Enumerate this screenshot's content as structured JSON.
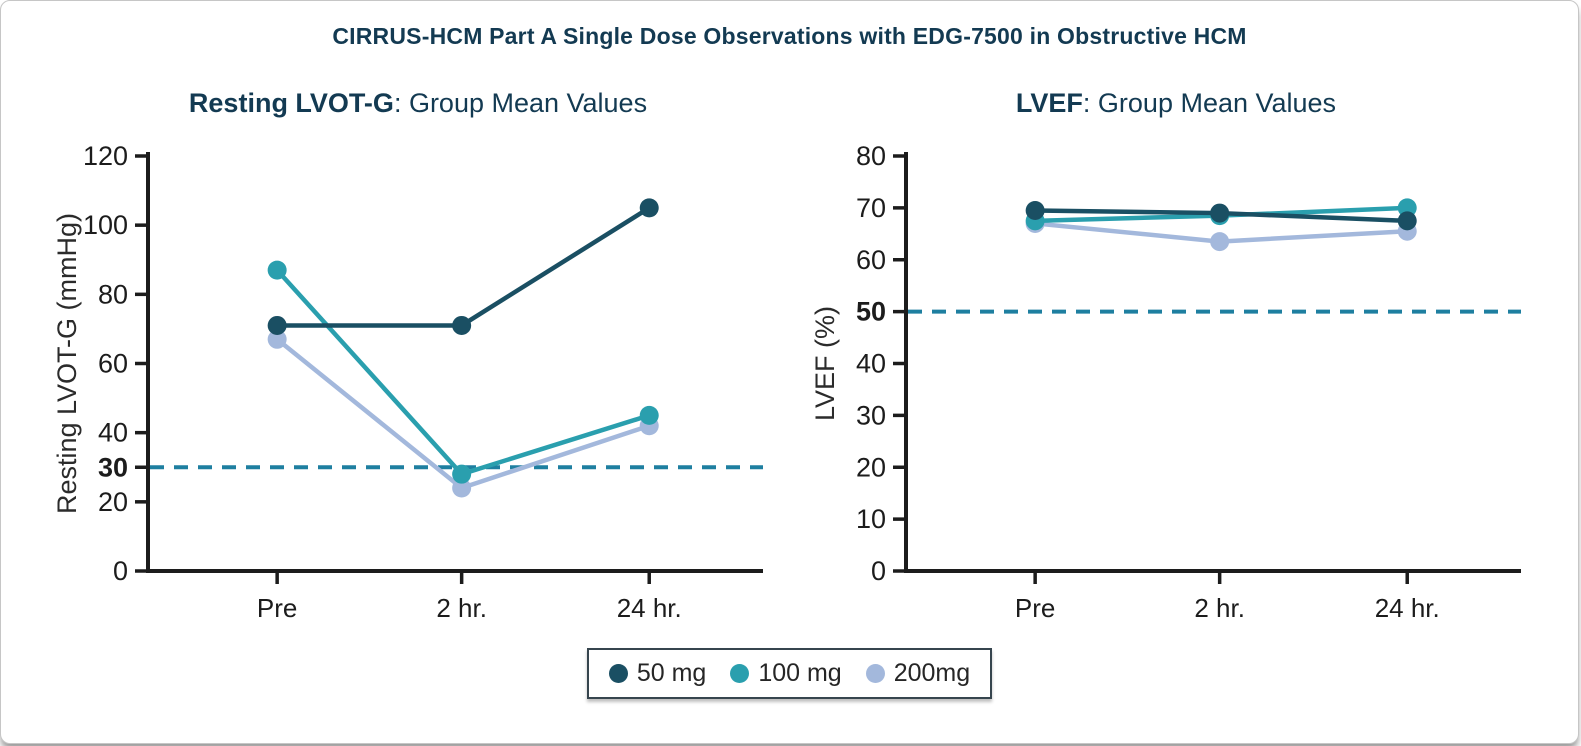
{
  "page_title": "CIRRUS-HCM Part A Single Dose Observations with EDG-7500 in Obstructive HCM",
  "colors": {
    "dose_50mg": "#1a4f63",
    "dose_100mg": "#2a9fae",
    "dose_200mg": "#a3b8dc",
    "reference_line": "#1e7fa0",
    "title_text": "#133a52",
    "axis_text": "#1c1c1c"
  },
  "legend": {
    "items": [
      {
        "label": "50 mg",
        "color": "#1a4f63"
      },
      {
        "label": "100 mg",
        "color": "#2a9fae"
      },
      {
        "label": "200mg",
        "color": "#a3b8dc"
      }
    ]
  },
  "chart_data": [
    {
      "type": "line",
      "title_bold": "Resting LVOT-G",
      "title_rest": ": Group Mean Values",
      "ylabel": "Resting LVOT-G (mmHg)",
      "xlabel": "",
      "categories": [
        "Pre",
        "2 hr.",
        "24 hr."
      ],
      "ylim": [
        0,
        120
      ],
      "yticks": [
        0,
        20,
        30,
        40,
        60,
        80,
        100,
        120
      ],
      "bold_ytick": 30,
      "reference_line": 30,
      "grid": false,
      "legend_position": "bottom-center",
      "series": [
        {
          "name": "50 mg",
          "color": "#1a4f63",
          "values": [
            71,
            71,
            105
          ]
        },
        {
          "name": "100 mg",
          "color": "#2a9fae",
          "values": [
            87,
            28,
            45
          ]
        },
        {
          "name": "200mg",
          "color": "#a3b8dc",
          "values": [
            67,
            24,
            42
          ]
        }
      ]
    },
    {
      "type": "line",
      "title_bold": "LVEF",
      "title_rest": ": Group Mean Values",
      "ylabel": "LVEF (%)",
      "xlabel": "",
      "categories": [
        "Pre",
        "2 hr.",
        "24 hr."
      ],
      "ylim": [
        0,
        80
      ],
      "yticks": [
        0,
        10,
        20,
        30,
        40,
        50,
        60,
        70,
        80
      ],
      "bold_ytick": 50,
      "reference_line": 50,
      "grid": false,
      "legend_position": "bottom-center",
      "series": [
        {
          "name": "50 mg",
          "color": "#1a4f63",
          "values": [
            69.5,
            69,
            67.5
          ]
        },
        {
          "name": "100 mg",
          "color": "#2a9fae",
          "values": [
            67.5,
            68.5,
            70
          ]
        },
        {
          "name": "200mg",
          "color": "#a3b8dc",
          "values": [
            67,
            63.5,
            65.5
          ]
        }
      ]
    }
  ]
}
